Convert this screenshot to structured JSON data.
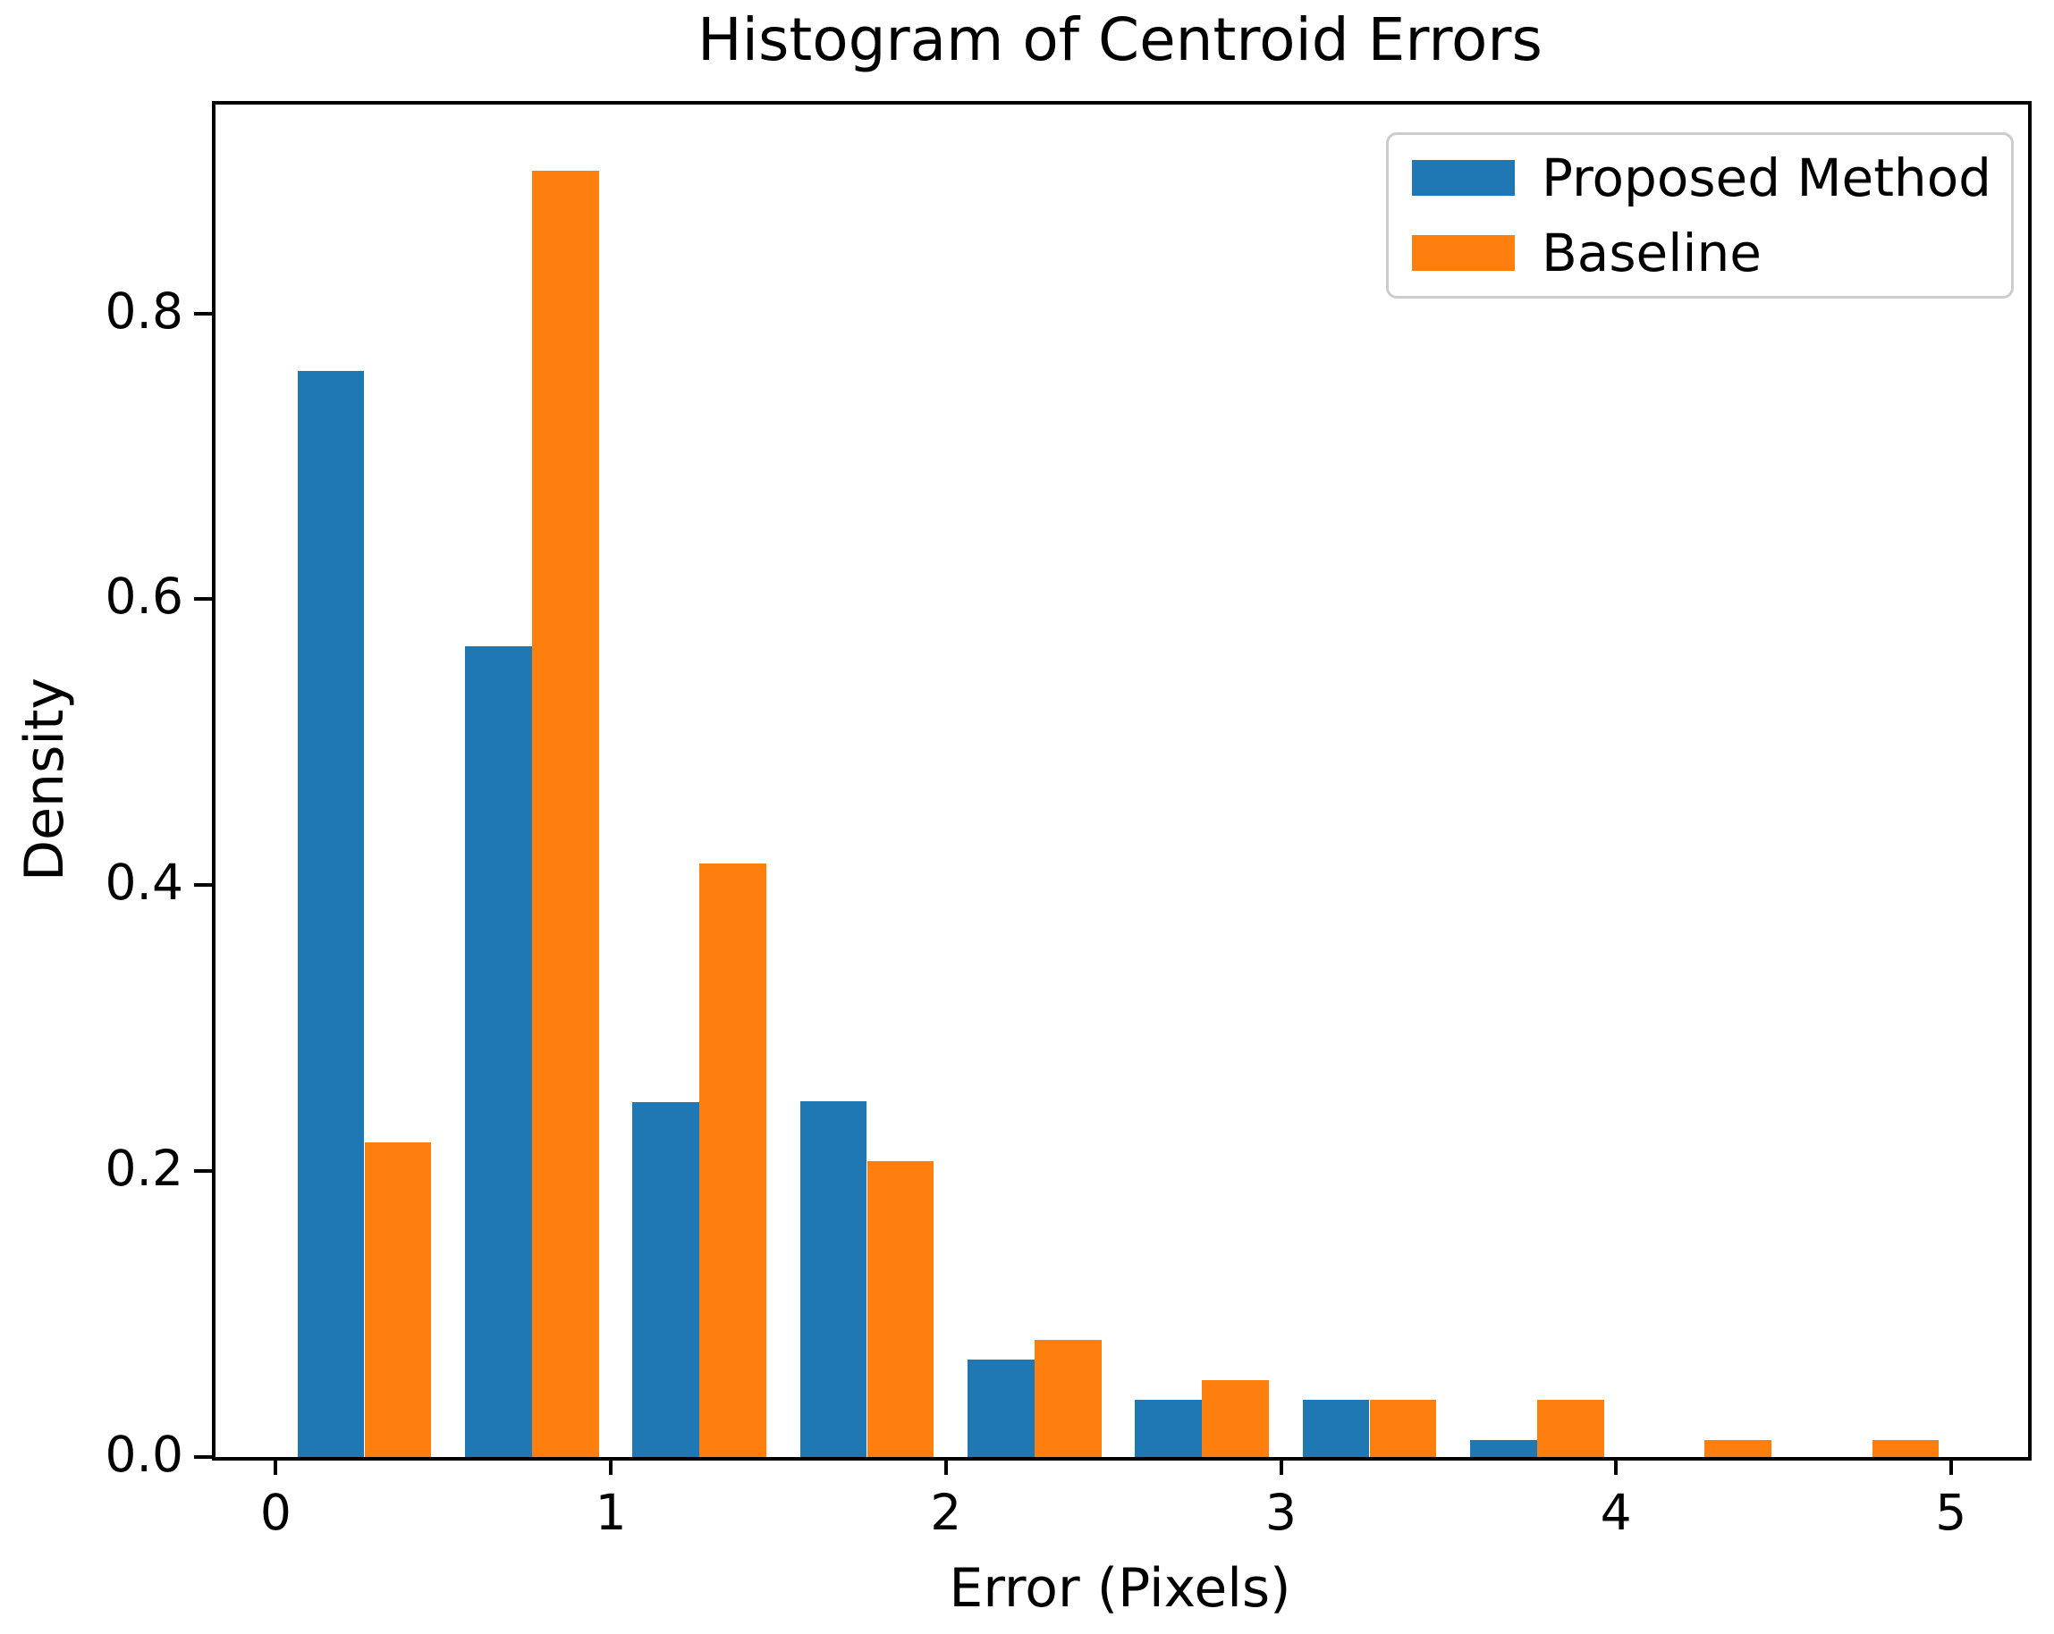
{
  "chart_data": {
    "type": "bar",
    "subtype": "grouped-histogram",
    "title": "Histogram of Centroid Errors",
    "xlabel": "Error (Pixels)",
    "ylabel": "Density",
    "bin_edges": [
      0,
      0.5,
      1.0,
      1.5,
      2.0,
      2.5,
      3.0,
      3.5,
      4.0,
      4.5,
      5.0
    ],
    "series": [
      {
        "name": "Proposed Method",
        "color": "#1f77b4",
        "values": [
          0.76,
          0.567,
          0.248,
          0.249,
          0.068,
          0.04,
          0.04,
          0.012,
          0,
          0
        ]
      },
      {
        "name": "Baseline",
        "color": "#ff7f0e",
        "values": [
          0.22,
          0.9,
          0.415,
          0.207,
          0.082,
          0.054,
          0.04,
          0.04,
          0.012,
          0.012
        ]
      }
    ],
    "xtick_labels": [
      "0",
      "1",
      "2",
      "3",
      "4",
      "5"
    ],
    "xtick_values": [
      0,
      1,
      2,
      3,
      4,
      5
    ],
    "ytick_labels": [
      "0.0",
      "0.2",
      "0.4",
      "0.6",
      "0.8"
    ],
    "ytick_values": [
      0,
      0.2,
      0.4,
      0.6,
      0.8
    ],
    "xlim": [
      -0.18,
      5.23
    ],
    "ylim": [
      0,
      0.946
    ],
    "grid": false,
    "legend": {
      "position": "upper right",
      "entries": [
        "Proposed Method",
        "Baseline"
      ]
    },
    "bar_layout": {
      "group_offset_frac": 0.15,
      "bar_width_frac": 0.4
    }
  }
}
